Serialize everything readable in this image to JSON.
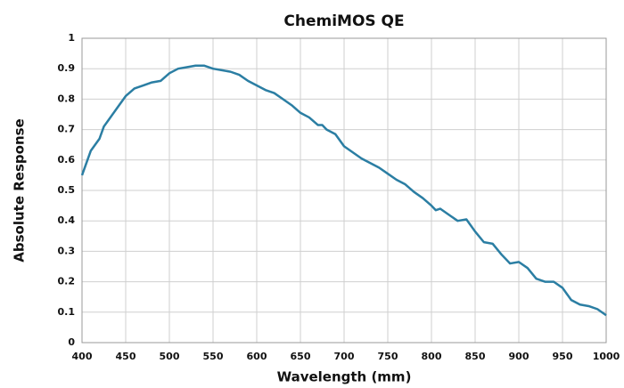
{
  "chart_data": {
    "type": "line",
    "title": "ChemiMOS QE",
    "x_label": "Wavelength (mm)",
    "y_label": "Absolute Response",
    "x": [
      400,
      410,
      420,
      425,
      430,
      440,
      450,
      460,
      470,
      480,
      490,
      500,
      510,
      520,
      530,
      540,
      550,
      560,
      570,
      580,
      590,
      600,
      610,
      620,
      630,
      640,
      650,
      660,
      670,
      675,
      680,
      690,
      700,
      710,
      720,
      730,
      740,
      750,
      760,
      770,
      780,
      790,
      800,
      805,
      810,
      820,
      830,
      840,
      850,
      860,
      870,
      880,
      890,
      900,
      910,
      920,
      930,
      940,
      950,
      960,
      970,
      980,
      990,
      1000
    ],
    "series": [
      {
        "name": "QE",
        "color": "#2b7ea3",
        "values": [
          0.55,
          0.63,
          0.67,
          0.71,
          0.73,
          0.77,
          0.81,
          0.835,
          0.845,
          0.855,
          0.86,
          0.885,
          0.9,
          0.905,
          0.91,
          0.91,
          0.9,
          0.895,
          0.89,
          0.88,
          0.86,
          0.845,
          0.83,
          0.82,
          0.8,
          0.78,
          0.755,
          0.74,
          0.715,
          0.715,
          0.7,
          0.685,
          0.645,
          0.625,
          0.605,
          0.59,
          0.575,
          0.555,
          0.535,
          0.52,
          0.495,
          0.475,
          0.45,
          0.435,
          0.44,
          0.42,
          0.4,
          0.405,
          0.365,
          0.33,
          0.325,
          0.29,
          0.26,
          0.265,
          0.245,
          0.21,
          0.2,
          0.2,
          0.18,
          0.14,
          0.125,
          0.12,
          0.11,
          0.09
        ]
      }
    ],
    "xlim": [
      400,
      1000
    ],
    "xticks": [
      400,
      450,
      500,
      550,
      600,
      650,
      700,
      750,
      800,
      850,
      900,
      950,
      1000
    ],
    "ylim": [
      0,
      1
    ],
    "yticks": [
      0,
      0.1,
      0.2,
      0.3,
      0.4,
      0.5,
      0.6,
      0.7,
      0.8,
      0.9,
      1
    ],
    "grid": true
  }
}
